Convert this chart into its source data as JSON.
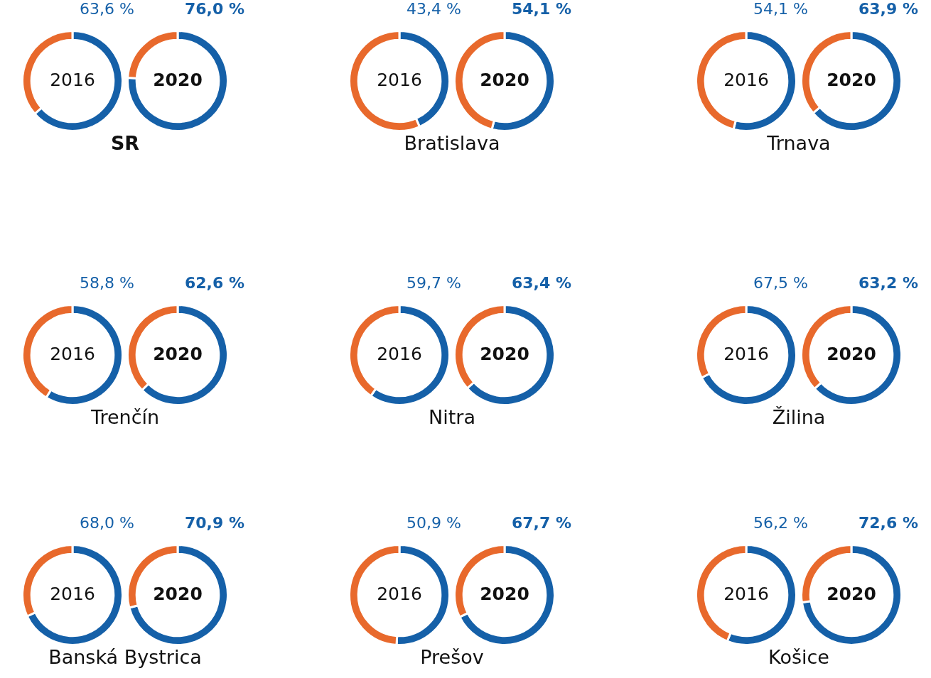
{
  "chart_data": [
    {
      "type": "donut",
      "title": "2016",
      "categories": [
        null,
        null
      ],
      "values": [
        63.6,
        36.4
      ],
      "colors": [
        "#1560a8",
        "#e8692c"
      ],
      "value_labels": [
        "63,6 %",
        null
      ],
      "annotations": [
        "SR"
      ]
    },
    {
      "type": "donut",
      "title": "2020",
      "categories": [
        null,
        null
      ],
      "values": [
        76.0,
        24.0
      ],
      "colors": [
        "#1560a8",
        "#e8692c"
      ],
      "value_labels": [
        "76,0 %",
        null
      ]
    },
    {
      "type": "donut",
      "title": "2016",
      "categories": [
        null,
        null
      ],
      "values": [
        43.4,
        56.6
      ],
      "colors": [
        "#1560a8",
        "#e8692c"
      ],
      "value_labels": [
        "43,4 %",
        null
      ],
      "annotations": [
        "Bratislava"
      ]
    },
    {
      "type": "donut",
      "title": "2020",
      "categories": [
        null,
        null
      ],
      "values": [
        54.1,
        45.9
      ],
      "colors": [
        "#1560a8",
        "#e8692c"
      ],
      "value_labels": [
        "54,1 %",
        null
      ]
    },
    {
      "type": "donut",
      "title": "2016",
      "categories": [
        null,
        null
      ],
      "values": [
        54.1,
        45.9
      ],
      "colors": [
        "#1560a8",
        "#e8692c"
      ],
      "value_labels": [
        "54,1 %",
        null
      ],
      "annotations": [
        "Trnava"
      ]
    },
    {
      "type": "donut",
      "title": "2020",
      "categories": [
        null,
        null
      ],
      "values": [
        63.9,
        36.1
      ],
      "colors": [
        "#1560a8",
        "#e8692c"
      ],
      "value_labels": [
        "63,9 %",
        null
      ]
    },
    {
      "type": "donut",
      "title": "2016",
      "categories": [
        null,
        null
      ],
      "values": [
        58.8,
        41.2
      ],
      "colors": [
        "#1560a8",
        "#e8692c"
      ],
      "value_labels": [
        "58,8 %",
        null
      ],
      "annotations": [
        "Trenčín"
      ]
    },
    {
      "type": "donut",
      "title": "2020",
      "categories": [
        null,
        null
      ],
      "values": [
        62.6,
        37.4
      ],
      "colors": [
        "#1560a8",
        "#e8692c"
      ],
      "value_labels": [
        "62,6 %",
        null
      ]
    },
    {
      "type": "donut",
      "title": "2016",
      "categories": [
        null,
        null
      ],
      "values": [
        59.7,
        40.3
      ],
      "colors": [
        "#1560a8",
        "#e8692c"
      ],
      "value_labels": [
        "59,7 %",
        null
      ],
      "annotations": [
        "Nitra"
      ]
    },
    {
      "type": "donut",
      "title": "2020",
      "categories": [
        null,
        null
      ],
      "values": [
        63.4,
        36.6
      ],
      "colors": [
        "#1560a8",
        "#e8692c"
      ],
      "value_labels": [
        "63,4 %",
        null
      ]
    },
    {
      "type": "donut",
      "title": "2016",
      "categories": [
        null,
        null
      ],
      "values": [
        67.5,
        32.5
      ],
      "colors": [
        "#1560a8",
        "#e8692c"
      ],
      "value_labels": [
        "67,5 %",
        null
      ],
      "annotations": [
        "Žilina"
      ]
    },
    {
      "type": "donut",
      "title": "2020",
      "categories": [
        null,
        null
      ],
      "values": [
        63.2,
        36.8
      ],
      "colors": [
        "#1560a8",
        "#e8692c"
      ],
      "value_labels": [
        "63,2 %",
        null
      ]
    },
    {
      "type": "donut",
      "title": "2016",
      "categories": [
        null,
        null
      ],
      "values": [
        68.0,
        32.0
      ],
      "colors": [
        "#1560a8",
        "#e8692c"
      ],
      "value_labels": [
        "68,0 %",
        null
      ],
      "annotations": [
        "Banská Bystrica"
      ]
    },
    {
      "type": "donut",
      "title": "2020",
      "categories": [
        null,
        null
      ],
      "values": [
        70.9,
        29.1
      ],
      "colors": [
        "#1560a8",
        "#e8692c"
      ],
      "value_labels": [
        "70,9 %",
        null
      ]
    },
    {
      "type": "donut",
      "title": "2016",
      "categories": [
        null,
        null
      ],
      "values": [
        50.9,
        49.1
      ],
      "colors": [
        "#1560a8",
        "#e8692c"
      ],
      "value_labels": [
        "50,9 %",
        null
      ],
      "annotations": [
        "Prešov"
      ]
    },
    {
      "type": "donut",
      "title": "2020",
      "categories": [
        null,
        null
      ],
      "values": [
        67.7,
        32.3
      ],
      "colors": [
        "#1560a8",
        "#e8692c"
      ],
      "value_labels": [
        "67,7 %",
        null
      ]
    },
    {
      "type": "donut",
      "title": "2016",
      "categories": [
        null,
        null
      ],
      "values": [
        56.2,
        43.8
      ],
      "colors": [
        "#1560a8",
        "#e8692c"
      ],
      "value_labels": [
        "56,2 %",
        null
      ],
      "annotations": [
        "Košice"
      ]
    },
    {
      "type": "donut",
      "title": "2020",
      "categories": [
        null,
        null
      ],
      "values": [
        72.6,
        27.4
      ],
      "colors": [
        "#1560a8",
        "#e8692c"
      ],
      "value_labels": [
        "72,6 %",
        null
      ]
    }
  ]
}
